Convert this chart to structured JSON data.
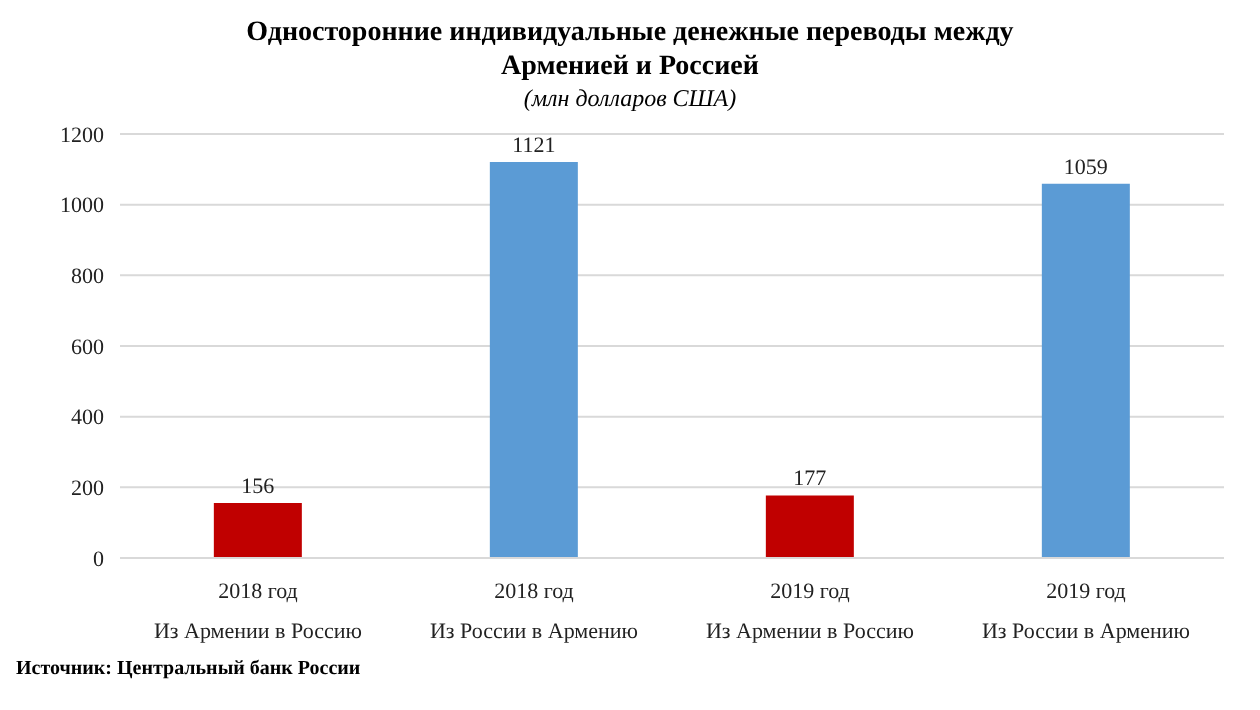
{
  "chart_data": {
    "type": "bar",
    "title": "Односторонние индивидуальные денежные переводы между Арменией и Россией",
    "subtitle": "(млн долларов США)",
    "categories": [
      "2018 год\nИз Армении в Россию",
      "2018 год\nИз России в Армению",
      "2019 год\nИз Армении в Россию",
      "2019 год\nИз России в Армению"
    ],
    "values": [
      156,
      1121,
      177,
      1059
    ],
    "colors": [
      "#c00000",
      "#5b9bd5",
      "#c00000",
      "#5b9bd5"
    ],
    "ylim": [
      0,
      1200
    ],
    "yticks": [
      0,
      200,
      400,
      600,
      800,
      1000,
      1200
    ],
    "grid": "y",
    "data_labels": true,
    "annotations": [
      "Источник: Центральный банк России"
    ]
  }
}
